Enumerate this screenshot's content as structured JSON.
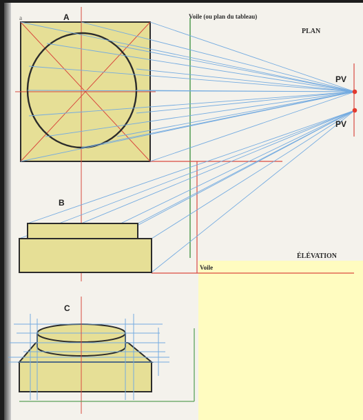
{
  "labels": {
    "figure_a": "A",
    "figure_b": "B",
    "figure_c": "C",
    "corner_a": "a",
    "veil_top": "Voile (ou plan du tableau)",
    "plan": "PLAN",
    "pv_top": "PV",
    "pv_bottom": "PV",
    "elevation": "ÉLÉVATION",
    "veil_bottom": "Voile"
  },
  "colors": {
    "page": "#f4f2ec",
    "fill": "#e6df96",
    "highlight": "#fffcc0",
    "red": "#d9493e",
    "blue": "#74abe0",
    "green": "#5aa15a",
    "outline": "#2b2b2b"
  }
}
